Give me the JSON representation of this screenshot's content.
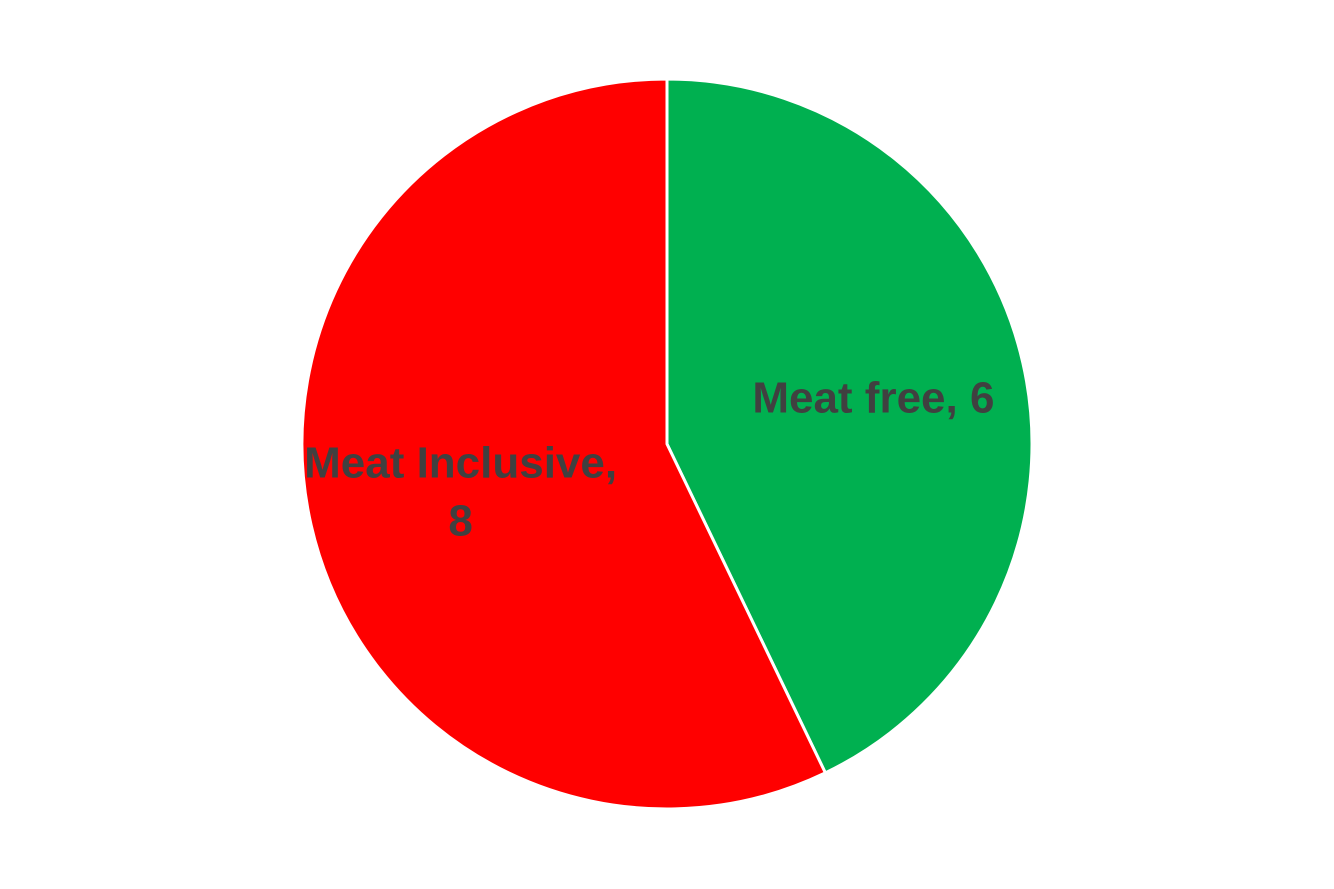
{
  "chart_data": {
    "type": "pie",
    "title": "",
    "start_angle": "12 o'clock",
    "direction": "clockwise",
    "legend": "none",
    "slices": [
      {
        "name": "Meat free",
        "value": 6,
        "color": "#00B050",
        "label_lines": [
          "Meat free, 6"
        ]
      },
      {
        "name": "Meat Inclusive",
        "value": 8,
        "color": "#FF0000",
        "label_lines": [
          "Meat Inclusive,",
          "8"
        ]
      }
    ]
  }
}
